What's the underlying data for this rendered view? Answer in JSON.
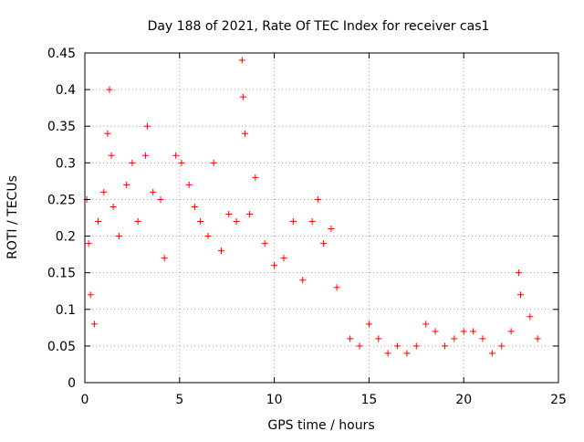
{
  "chart_data": {
    "type": "scatter",
    "title": "Day 188 of 2021, Rate Of TEC Index for receiver cas1",
    "xlabel": "GPS time / hours",
    "ylabel": "ROTI / TECUs",
    "xlim": [
      0,
      25
    ],
    "ylim": [
      0,
      0.45
    ],
    "x_ticks": [
      0,
      5,
      10,
      15,
      20,
      25
    ],
    "x_tick_labels": [
      "0",
      "5",
      "10",
      "15",
      "20",
      "25"
    ],
    "y_ticks": [
      0,
      0.05,
      0.1,
      0.15,
      0.2,
      0.25,
      0.3,
      0.35,
      0.4,
      0.45
    ],
    "y_tick_labels": [
      "0",
      "0.05",
      "0.1",
      "0.15",
      "0.2",
      "0.25",
      "0.3",
      "0.35",
      "0.4",
      "0.45"
    ],
    "grid": true,
    "marker": "plus",
    "color": "#ff0000",
    "series": [
      {
        "points": [
          [
            0.1,
            0.25
          ],
          [
            0.2,
            0.19
          ],
          [
            0.3,
            0.12
          ],
          [
            0.5,
            0.08
          ],
          [
            0.7,
            0.22
          ],
          [
            1.0,
            0.26
          ],
          [
            1.2,
            0.34
          ],
          [
            1.3,
            0.4
          ],
          [
            1.4,
            0.31
          ],
          [
            1.5,
            0.24
          ],
          [
            1.8,
            0.2
          ],
          [
            2.2,
            0.27
          ],
          [
            2.5,
            0.3
          ],
          [
            2.8,
            0.22
          ],
          [
            3.2,
            0.31
          ],
          [
            3.3,
            0.35
          ],
          [
            3.6,
            0.26
          ],
          [
            4.0,
            0.25
          ],
          [
            4.2,
            0.17
          ],
          [
            4.8,
            0.31
          ],
          [
            5.1,
            0.3
          ],
          [
            5.5,
            0.27
          ],
          [
            5.8,
            0.24
          ],
          [
            6.1,
            0.22
          ],
          [
            6.5,
            0.2
          ],
          [
            6.8,
            0.3
          ],
          [
            7.2,
            0.18
          ],
          [
            7.6,
            0.23
          ],
          [
            8.0,
            0.22
          ],
          [
            8.3,
            0.44
          ],
          [
            8.35,
            0.39
          ],
          [
            8.45,
            0.34
          ],
          [
            8.7,
            0.23
          ],
          [
            9.0,
            0.28
          ],
          [
            9.5,
            0.19
          ],
          [
            10.0,
            0.16
          ],
          [
            10.5,
            0.17
          ],
          [
            11.0,
            0.22
          ],
          [
            11.5,
            0.14
          ],
          [
            12.0,
            0.22
          ],
          [
            12.3,
            0.25
          ],
          [
            12.6,
            0.19
          ],
          [
            13.0,
            0.21
          ],
          [
            13.3,
            0.13
          ],
          [
            14.0,
            0.06
          ],
          [
            14.5,
            0.05
          ],
          [
            15.0,
            0.08
          ],
          [
            15.5,
            0.06
          ],
          [
            16.0,
            0.04
          ],
          [
            16.5,
            0.05
          ],
          [
            17.0,
            0.04
          ],
          [
            17.5,
            0.05
          ],
          [
            18.0,
            0.08
          ],
          [
            18.5,
            0.07
          ],
          [
            19.0,
            0.05
          ],
          [
            19.5,
            0.06
          ],
          [
            20.0,
            0.07
          ],
          [
            20.5,
            0.07
          ],
          [
            21.0,
            0.06
          ],
          [
            21.5,
            0.04
          ],
          [
            22.0,
            0.05
          ],
          [
            22.5,
            0.07
          ],
          [
            22.9,
            0.15
          ],
          [
            23.0,
            0.12
          ],
          [
            23.5,
            0.09
          ],
          [
            23.9,
            0.06
          ]
        ]
      }
    ]
  }
}
